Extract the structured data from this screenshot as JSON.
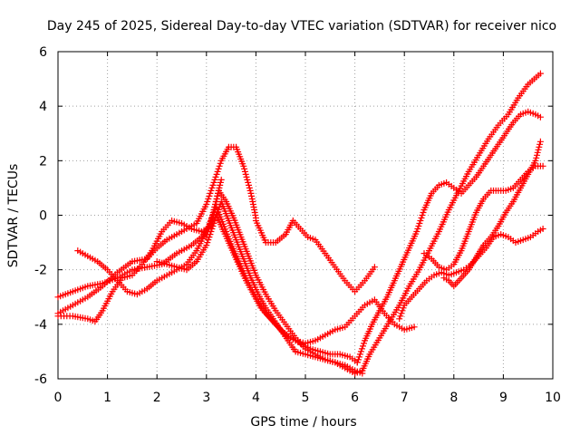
{
  "chart_data": {
    "type": "scatter",
    "title": "Day 245 of 2025, Sidereal Day-to-day VTEC variation (SDTVAR) for receiver nico",
    "xlabel": "GPS time / hours",
    "ylabel": "SDTVAR / TECUs",
    "xlim": [
      0,
      10
    ],
    "ylim": [
      -6,
      6
    ],
    "xticks": [
      "0",
      "1",
      "2",
      "3",
      "4",
      "5",
      "6",
      "7",
      "8",
      "9",
      "10"
    ],
    "yticks": [
      "-6",
      "-4",
      "-2",
      "0",
      "2",
      "4",
      "6"
    ],
    "grid": true,
    "marker": "plus",
    "color": "#ff0000",
    "series": [
      {
        "x": [
          0.0,
          0.3,
          0.6,
          0.9,
          1.2,
          1.5,
          1.8,
          2.0,
          2.2,
          2.5,
          2.8,
          3.0,
          3.15,
          3.3,
          3.45,
          3.6,
          3.75,
          3.9,
          4.0
        ],
        "y": [
          -3.6,
          -3.3,
          -3.0,
          -2.6,
          -2.1,
          -1.7,
          -1.6,
          -1.2,
          -0.9,
          -0.6,
          -0.3,
          0.4,
          1.2,
          2.0,
          2.5,
          2.5,
          1.8,
          0.8,
          -0.1
        ]
      },
      {
        "x": [
          4.0,
          4.2,
          4.4,
          4.6,
          4.75,
          4.9,
          5.05,
          5.2,
          5.4,
          5.6,
          5.8,
          6.0,
          6.2,
          6.4
        ],
        "y": [
          -0.2,
          -1.0,
          -1.0,
          -0.7,
          -0.2,
          -0.5,
          -0.8,
          -0.9,
          -1.4,
          -1.9,
          -2.4,
          -2.8,
          -2.4,
          -1.9
        ]
      },
      {
        "x": [
          0.0,
          0.3,
          0.6,
          0.9,
          1.2,
          1.5,
          1.8,
          2.1,
          2.4,
          2.7,
          2.9,
          3.1,
          3.25
        ],
        "y": [
          -3.0,
          -2.8,
          -2.6,
          -2.5,
          -2.3,
          -2.0,
          -1.9,
          -1.8,
          -1.4,
          -1.1,
          -0.8,
          -0.3,
          0.9
        ]
      },
      {
        "x": [
          3.25,
          3.4,
          3.55,
          3.7,
          3.85,
          4.0,
          4.2,
          4.4,
          4.6,
          4.8,
          5.0,
          5.2,
          5.4,
          5.6,
          5.8,
          6.0,
          6.15
        ],
        "y": [
          0.9,
          0.5,
          -0.1,
          -0.8,
          -1.5,
          -2.2,
          -2.9,
          -3.5,
          -4.0,
          -4.5,
          -4.9,
          -5.1,
          -5.3,
          -5.4,
          -5.6,
          -5.8,
          -5.7
        ]
      },
      {
        "x": [
          6.15,
          6.3,
          6.5,
          6.7,
          6.9,
          7.1,
          7.3,
          7.5,
          7.7,
          7.9,
          8.1,
          8.3,
          8.5,
          8.7,
          8.9,
          9.1,
          9.3,
          9.5,
          9.75
        ],
        "y": [
          -5.7,
          -5.1,
          -4.5,
          -3.9,
          -3.3,
          -2.6,
          -2.0,
          -1.3,
          -0.6,
          0.2,
          0.9,
          1.6,
          2.2,
          2.8,
          3.3,
          3.7,
          4.3,
          4.8,
          5.2
        ]
      },
      {
        "x": [
          0.0,
          0.3,
          0.6,
          0.75,
          0.9,
          1.1,
          1.3,
          1.5,
          1.7,
          1.9,
          2.1,
          2.3,
          2.5,
          2.7,
          2.9,
          3.1,
          3.2
        ],
        "y": [
          -3.7,
          -3.7,
          -3.8,
          -3.9,
          -3.5,
          -2.8,
          -2.3,
          -2.2,
          -1.8,
          -1.3,
          -0.6,
          -0.2,
          -0.3,
          -0.5,
          -0.6,
          -0.4,
          0.0
        ]
      },
      {
        "x": [
          3.2,
          3.35,
          3.5,
          3.65,
          3.8,
          3.95,
          4.1,
          4.3,
          4.5,
          4.7,
          4.9,
          5.1,
          5.3,
          5.5,
          5.7,
          5.9,
          6.05
        ],
        "y": [
          0.0,
          -0.6,
          -1.2,
          -1.8,
          -2.4,
          -2.9,
          -3.4,
          -3.8,
          -4.2,
          -4.5,
          -4.7,
          -4.9,
          -5.0,
          -5.1,
          -5.1,
          -5.2,
          -5.4
        ]
      },
      {
        "x": [
          6.05,
          6.2,
          6.35,
          6.5,
          6.65,
          6.8,
          6.95,
          7.1,
          7.25,
          7.4,
          7.55,
          7.7,
          7.85,
          8.0,
          8.15,
          8.3,
          8.45,
          8.6,
          8.75,
          8.9,
          9.05,
          9.2,
          9.35,
          9.5,
          9.65,
          9.75
        ],
        "y": [
          -5.4,
          -4.6,
          -4.0,
          -3.5,
          -3.0,
          -2.4,
          -1.8,
          -1.2,
          -0.6,
          0.2,
          0.8,
          1.1,
          1.2,
          1.0,
          0.8,
          1.1,
          1.4,
          1.8,
          2.2,
          2.6,
          3.0,
          3.4,
          3.7,
          3.8,
          3.7,
          3.6
        ]
      },
      {
        "x": [
          0.4,
          0.6,
          0.8,
          1.0,
          1.2,
          1.4,
          1.6,
          1.8,
          2.0,
          2.2,
          2.4,
          2.6,
          2.8,
          3.0,
          3.2
        ],
        "y": [
          -1.3,
          -1.5,
          -1.7,
          -2.0,
          -2.4,
          -2.8,
          -2.9,
          -2.7,
          -2.4,
          -2.2,
          -2.0,
          -1.8,
          -1.3,
          -0.6,
          0.3
        ]
      },
      {
        "x": [
          3.2,
          3.4,
          3.6,
          3.8,
          4.0,
          4.2,
          4.4,
          4.6,
          4.8,
          5.0,
          5.2,
          5.4,
          5.6,
          5.8,
          6.0,
          6.2,
          6.4,
          6.6,
          6.8,
          7.0,
          7.2
        ],
        "y": [
          0.3,
          -0.6,
          -1.5,
          -2.3,
          -3.0,
          -3.6,
          -4.0,
          -4.4,
          -4.6,
          -4.7,
          -4.6,
          -4.4,
          -4.2,
          -4.1,
          -3.7,
          -3.3,
          -3.1,
          -3.6,
          -4.0,
          -4.2,
          -4.1
        ]
      },
      {
        "x": [
          2.0,
          2.2,
          2.4,
          2.6,
          2.8,
          3.0,
          3.15,
          3.3,
          3.45,
          3.6,
          3.75,
          3.9,
          4.05,
          4.2,
          4.35,
          4.5,
          4.65,
          4.8
        ],
        "y": [
          -1.7,
          -1.8,
          -1.9,
          -2.0,
          -1.7,
          -1.1,
          -0.3,
          0.5,
          -0.2,
          -0.9,
          -1.6,
          -2.3,
          -2.9,
          -3.4,
          -3.8,
          -4.2,
          -4.6,
          -5.0
        ]
      },
      {
        "x": [
          4.8,
          5.0,
          5.2,
          5.4,
          5.6,
          5.8,
          6.0,
          6.15
        ],
        "y": [
          -5.0,
          -5.1,
          -5.2,
          -5.3,
          -5.4,
          -5.5,
          -5.7,
          -5.8
        ]
      },
      {
        "x": [
          6.9,
          7.0,
          7.15,
          7.3,
          7.45,
          7.6,
          7.75,
          7.9,
          8.05,
          8.2,
          8.35,
          8.5,
          8.65,
          8.8,
          8.95,
          9.1,
          9.25,
          9.4,
          9.55,
          9.7,
          9.8
        ],
        "y": [
          -3.8,
          -3.3,
          -3.0,
          -2.7,
          -2.4,
          -2.2,
          -2.1,
          -2.2,
          -2.1,
          -2.0,
          -1.8,
          -1.5,
          -1.2,
          -0.8,
          -0.7,
          -0.8,
          -1.0,
          -0.9,
          -0.8,
          -0.6,
          -0.5
        ]
      },
      {
        "x": [
          7.8,
          7.9,
          8.0,
          8.1,
          8.2,
          8.3,
          8.4,
          8.5,
          8.6,
          8.75,
          8.9,
          9.05,
          9.2,
          9.35,
          9.5,
          9.65,
          9.75
        ],
        "y": [
          -2.3,
          -2.4,
          -2.6,
          -2.4,
          -2.2,
          -2.0,
          -1.7,
          -1.4,
          -1.1,
          -0.8,
          -0.4,
          0.1,
          0.5,
          1.0,
          1.5,
          2.0,
          2.7
        ]
      },
      {
        "x": [
          7.4,
          7.55,
          7.7,
          7.85,
          8.0,
          8.15,
          8.3,
          8.45,
          8.6,
          8.75,
          8.9,
          9.05,
          9.2,
          9.35,
          9.5,
          9.65,
          9.8
        ],
        "y": [
          -1.4,
          -1.6,
          -1.9,
          -2.0,
          -1.8,
          -1.3,
          -0.6,
          0.1,
          0.6,
          0.9,
          0.9,
          0.9,
          1.0,
          1.3,
          1.6,
          1.8,
          1.8
        ]
      },
      {
        "x": [
          3.0,
          3.15,
          3.3
        ],
        "y": [
          -0.8,
          0.2,
          1.3
        ]
      }
    ]
  }
}
